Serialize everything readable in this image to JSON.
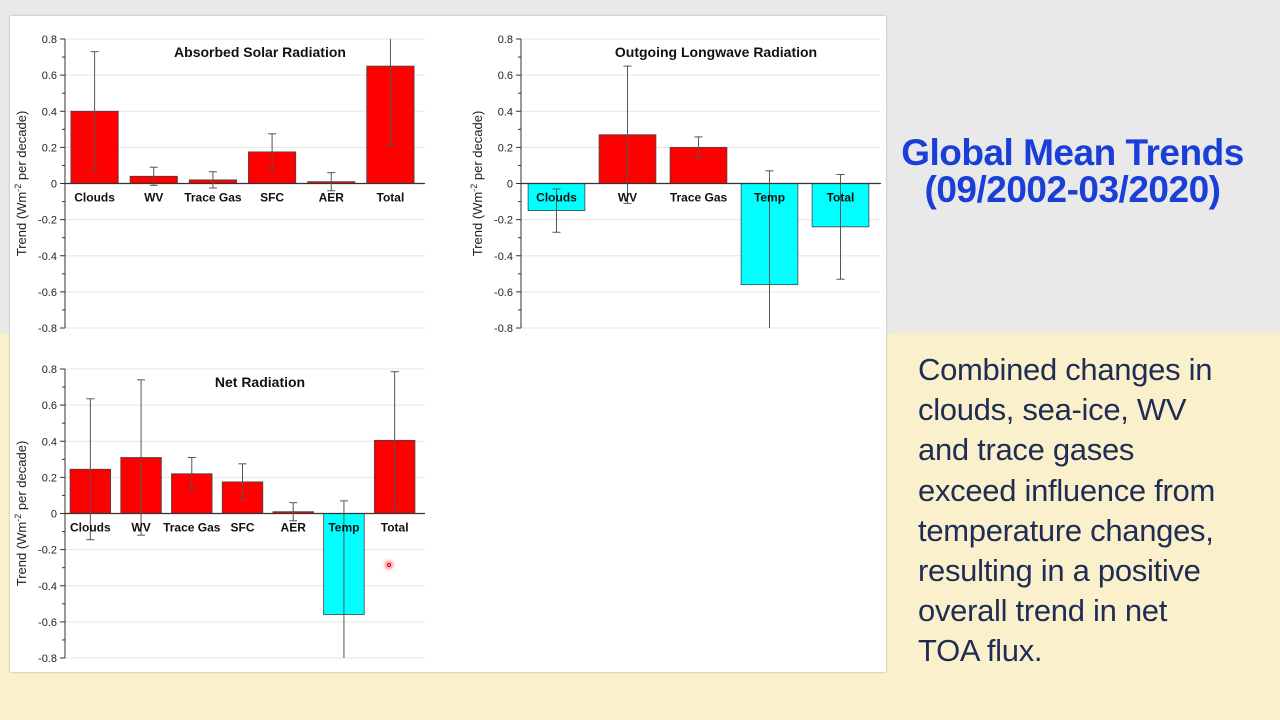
{
  "slide": {
    "title_lines": [
      "Global Mean Trends",
      "(09/2002-03/2020)"
    ],
    "body_lines": [
      "Combined changes in",
      "clouds, sea-ice, WV",
      "and trace gases",
      "exceed influence from",
      "temperature changes,",
      "resulting in a positive",
      "overall trend in net",
      "TOA flux."
    ]
  },
  "colors": {
    "positive": "#ff0000",
    "negative": "#00ffff",
    "title": "#1a3fd9",
    "body": "#1f2d55"
  },
  "chart_data": [
    {
      "type": "bar",
      "title": "Absorbed Solar Radiation",
      "ylabel": "Trend (Wm-2 per decade)",
      "ylabel_main": "Trend (Wm",
      "ylabel_sup": "-2",
      "ylabel_rest": " per decade)",
      "ylim": [
        -0.8,
        0.8
      ],
      "yticks": [
        "0.8",
        "0.6",
        "0.4",
        "0.2",
        "0",
        "-0.2",
        "-0.4",
        "-0.6",
        "-0.8"
      ],
      "grid": true,
      "categories": [
        "Clouds",
        "WV",
        "Trace Gas",
        "SFC",
        "AER",
        "Total"
      ],
      "values": [
        0.4,
        0.04,
        0.02,
        0.175,
        0.01,
        0.65
      ],
      "errors": [
        0.33,
        0.05,
        0.045,
        0.1,
        0.05,
        0.44
      ]
    },
    {
      "type": "bar",
      "title": "Outgoing Longwave Radiation",
      "ylabel": "Trend (Wm-2 per decade)",
      "ylabel_main": "Trend (Wm",
      "ylabel_sup": "-2",
      "ylabel_rest": " per decade)",
      "ylim": [
        -0.8,
        0.8
      ],
      "yticks": [
        "0.8",
        "0.6",
        "0.4",
        "0.2",
        "0",
        "-0.2",
        "-0.4",
        "-0.6",
        "-0.8"
      ],
      "grid": true,
      "categories": [
        "Clouds",
        "WV",
        "Trace Gas",
        "Temp",
        "Total"
      ],
      "values": [
        -0.15,
        0.27,
        0.2,
        -0.56,
        -0.24
      ],
      "errors": [
        0.12,
        0.38,
        0.058,
        0.63,
        0.29
      ]
    },
    {
      "type": "bar",
      "title": "Net Radiation",
      "ylabel": "Trend (Wm-2 per decade)",
      "ylabel_main": "Trend (Wm",
      "ylabel_sup": "-2",
      "ylabel_rest": " per decade)",
      "ylim": [
        -0.8,
        0.8
      ],
      "yticks": [
        "0.8",
        "0.6",
        "0.4",
        "0.2",
        "0",
        "-0.2",
        "-0.4",
        "-0.6",
        "-0.8"
      ],
      "grid": true,
      "categories": [
        "Clouds",
        "WV",
        "Trace Gas",
        "SFC",
        "AER",
        "Temp",
        "Total"
      ],
      "values": [
        0.245,
        0.31,
        0.22,
        0.175,
        0.01,
        -0.56,
        0.405
      ],
      "errors": [
        0.39,
        0.43,
        0.09,
        0.1,
        0.05,
        0.63,
        0.38
      ]
    }
  ]
}
